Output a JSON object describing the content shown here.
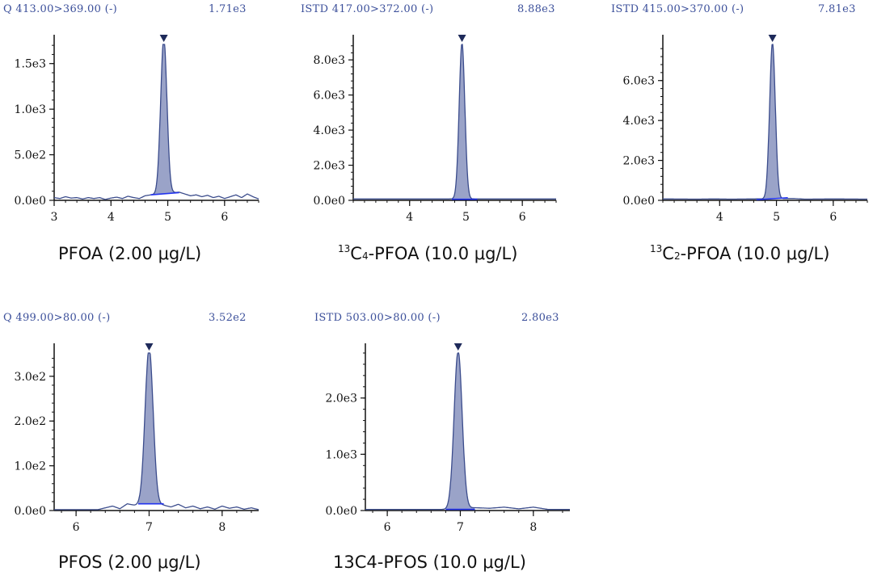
{
  "chart_data": [
    {
      "type": "line",
      "header_left": "Q 413.00>369.00 (-)",
      "header_right": "1.71e3",
      "caption": {
        "pre": "",
        "sup": "",
        "main": "PFOA (2.00 μg/L)",
        "sub": "",
        "post": ""
      },
      "xlim": [
        3,
        6.6
      ],
      "ylim": [
        0,
        1710
      ],
      "x_ticks": [
        3,
        4,
        5,
        6
      ],
      "x_tick_labels": [
        "3",
        "4",
        "5",
        "6"
      ],
      "y_ticks": [
        0,
        500,
        1000,
        1500
      ],
      "y_tick_labels": [
        "0.0e0",
        "5.0e2",
        "1.0e3",
        "1.5e3"
      ],
      "peak_rt": 4.93,
      "peak_height": 1710,
      "peak_sigma": 0.055,
      "integration_range": [
        4.7,
        5.2
      ],
      "integration_baseline": [
        60,
        85
      ],
      "baseline_x": [
        3.0,
        3.1,
        3.2,
        3.3,
        3.4,
        3.5,
        3.6,
        3.7,
        3.8,
        3.9,
        4.0,
        4.1,
        4.2,
        4.3,
        4.4,
        4.5,
        4.6,
        4.7,
        5.2,
        5.3,
        5.4,
        5.5,
        5.6,
        5.7,
        5.8,
        5.9,
        6.0,
        6.1,
        6.2,
        6.3,
        6.4,
        6.5,
        6.6
      ],
      "baseline_y": [
        30,
        20,
        40,
        25,
        30,
        15,
        30,
        20,
        30,
        10,
        25,
        35,
        20,
        45,
        30,
        20,
        50,
        60,
        90,
        70,
        50,
        60,
        40,
        55,
        30,
        45,
        20,
        40,
        60,
        30,
        70,
        40,
        15
      ]
    },
    {
      "type": "line",
      "header_left": "ISTD 417.00>372.00 (-)",
      "header_right": "8.88e3",
      "caption": {
        "pre": "",
        "sup": "13",
        "main": "C",
        "sub": "4",
        "post": "-PFOA (10.0 μg/L)"
      },
      "xlim": [
        3.0,
        6.6
      ],
      "ylim": [
        0,
        8880
      ],
      "x_ticks": [
        4,
        5,
        6
      ],
      "x_tick_labels": [
        "4",
        "5",
        "6"
      ],
      "y_ticks": [
        0,
        2000,
        4000,
        6000,
        8000
      ],
      "y_tick_labels": [
        "0.0e0",
        "2.0e3",
        "4.0e3",
        "6.0e3",
        "8.0e3"
      ],
      "peak_rt": 4.93,
      "peak_height": 8880,
      "peak_sigma": 0.05,
      "integration_range": [
        4.75,
        5.2
      ],
      "integration_baseline": [
        60,
        60
      ],
      "baseline_x": [
        3.0,
        4.0,
        4.5,
        5.3,
        5.8,
        6.0,
        6.6
      ],
      "baseline_y": [
        80,
        80,
        80,
        80,
        80,
        80,
        80
      ]
    },
    {
      "type": "line",
      "header_left": "ISTD 415.00>370.00 (-)",
      "header_right": "7.81e3",
      "caption": {
        "pre": "",
        "sup": "13",
        "main": "C",
        "sub": "2",
        "post": "-PFOA (10.0 μg/L)"
      },
      "xlim": [
        3.0,
        6.6
      ],
      "ylim": [
        0,
        7810
      ],
      "x_ticks": [
        4,
        5,
        6
      ],
      "x_tick_labels": [
        "4",
        "5",
        "6"
      ],
      "y_ticks": [
        0,
        2000,
        4000,
        6000
      ],
      "y_tick_labels": [
        "0.0e0",
        "2.0e3",
        "4.0e3",
        "6.0e3"
      ],
      "peak_rt": 4.93,
      "peak_height": 7810,
      "peak_sigma": 0.05,
      "integration_range": [
        4.65,
        5.2
      ],
      "integration_baseline": [
        30,
        130
      ],
      "baseline_x": [
        3.0,
        3.6,
        3.9,
        4.2,
        4.6,
        5.3,
        5.5,
        6.0,
        6.6
      ],
      "baseline_y": [
        70,
        60,
        70,
        60,
        70,
        90,
        60,
        70,
        60
      ]
    },
    {
      "type": "line",
      "header_left": "Q 499.00>80.00 (-)",
      "header_right": "3.52e2",
      "caption": {
        "pre": "",
        "sup": "",
        "main": "PFOS (2.00 μg/L)",
        "sub": "",
        "post": ""
      },
      "xlim": [
        5.7,
        8.5
      ],
      "ylim": [
        0,
        352
      ],
      "x_ticks": [
        6,
        7,
        8
      ],
      "x_tick_labels": [
        "6",
        "7",
        "8"
      ],
      "y_ticks": [
        0,
        100,
        200,
        300
      ],
      "y_tick_labels": [
        "0.0e0",
        "1.0e2",
        "2.0e2",
        "3.0e2"
      ],
      "peak_rt": 7.0,
      "peak_height": 352,
      "peak_sigma": 0.055,
      "integration_range": [
        6.85,
        7.2
      ],
      "integration_baseline": [
        15,
        15
      ],
      "baseline_x": [
        5.7,
        6.3,
        6.5,
        6.6,
        6.7,
        6.8,
        7.2,
        7.3,
        7.4,
        7.5,
        7.6,
        7.7,
        7.8,
        7.9,
        8.0,
        8.1,
        8.2,
        8.3,
        8.4,
        8.5
      ],
      "baseline_y": [
        2,
        2,
        10,
        4,
        15,
        12,
        12,
        8,
        14,
        6,
        10,
        4,
        8,
        3,
        10,
        5,
        8,
        3,
        6,
        2
      ]
    },
    {
      "type": "line",
      "header_left": "ISTD 503.00>80.00 (-)",
      "header_right": "2.80e3",
      "caption": {
        "pre": "13C4-PFOS (10.0 μg/L)",
        "sup": "",
        "main": "",
        "sub": "",
        "post": ""
      },
      "xlim": [
        5.7,
        8.5
      ],
      "ylim": [
        0,
        2800
      ],
      "x_ticks": [
        6,
        7,
        8
      ],
      "x_tick_labels": [
        "6",
        "7",
        "8"
      ],
      "y_ticks": [
        0,
        1000,
        2000
      ],
      "y_tick_labels": [
        "0.0e0",
        "1.0e3",
        "2.0e3"
      ],
      "peak_rt": 6.97,
      "peak_height": 2800,
      "peak_sigma": 0.055,
      "integration_range": [
        6.8,
        7.2
      ],
      "integration_baseline": [
        20,
        20
      ],
      "baseline_x": [
        5.7,
        6.6,
        6.8,
        7.2,
        7.4,
        7.6,
        7.8,
        8.0,
        8.2,
        8.5
      ],
      "baseline_y": [
        20,
        20,
        20,
        50,
        40,
        60,
        30,
        60,
        20,
        20
      ]
    }
  ],
  "colors": {
    "header": "#3b4f9a",
    "trace": "#3b4c8c",
    "fill": "#9aa3c8",
    "integration": "#2233ee",
    "marker": "#1e2a5a",
    "axis": "#111111"
  }
}
